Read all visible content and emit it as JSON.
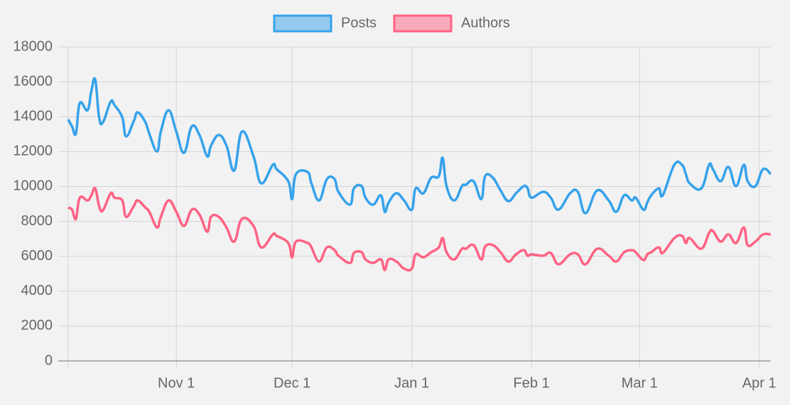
{
  "chart_data": {
    "type": "line",
    "x": [
      "Oct 4",
      "Oct 5",
      "Oct 6",
      "Oct 7",
      "Oct 9",
      "Oct 10",
      "Oct 11",
      "Oct 12",
      "Oct 13",
      "Oct 15",
      "Oct 16",
      "Oct 18",
      "Oct 19",
      "Oct 21",
      "Oct 22",
      "Oct 24",
      "Oct 25",
      "Oct 27",
      "Oct 28",
      "Oct 30",
      "Nov 1",
      "Nov 3",
      "Nov 5",
      "Nov 7",
      "Nov 9",
      "Nov 10",
      "Nov 12",
      "Nov 14",
      "Nov 16",
      "Nov 18",
      "Nov 21",
      "Nov 23",
      "Nov 26",
      "Nov 27",
      "Nov 30",
      "Dec 1",
      "Dec 2",
      "Dec 5",
      "Dec 6",
      "Dec 8",
      "Dec 10",
      "Dec 12",
      "Dec 13",
      "Dec 16",
      "Dec 17",
      "Dec 19",
      "Dec 20",
      "Dec 22",
      "Dec 24",
      "Dec 25",
      "Dec 26",
      "Dec 28",
      "Dec 30",
      "Jan 1",
      "Jan 2",
      "Jan 4",
      "Jan 6",
      "Jan 8",
      "Jan 9",
      "Jan 10",
      "Jan 12",
      "Jan 14",
      "Jan 15",
      "Jan 17",
      "Jan 19",
      "Jan 20",
      "Jan 22",
      "Jan 24",
      "Jan 26",
      "Jan 28",
      "Jan 30",
      "Jan 31",
      "Feb 1",
      "Feb 4",
      "Feb 6",
      "Feb 8",
      "Feb 11",
      "Feb 13",
      "Feb 15",
      "Feb 18",
      "Feb 21",
      "Feb 23",
      "Feb 25",
      "Feb 27",
      "Feb 28",
      "Mar 2",
      "Mar 3",
      "Mar 4",
      "Mar 6",
      "Mar 7",
      "Mar 10",
      "Mar 12",
      "Mar 13",
      "Mar 14",
      "Mar 17",
      "Mar 19",
      "Mar 20",
      "Mar 22",
      "Mar 24",
      "Mar 26",
      "Mar 28",
      "Mar 29",
      "Mar 31",
      "Apr 2",
      "Apr 4"
    ],
    "series": [
      {
        "name": "Posts",
        "color": "#36a2eb",
        "values": [
          13840,
          13440,
          13030,
          14780,
          14370,
          15470,
          16120,
          13970,
          13680,
          14860,
          14660,
          13970,
          12870,
          13760,
          14250,
          13680,
          13030,
          12010,
          13150,
          14370,
          13150,
          11930,
          13440,
          12950,
          11730,
          12340,
          12950,
          12340,
          10910,
          13150,
          11730,
          10180,
          11240,
          10990,
          10300,
          9280,
          10710,
          10830,
          10180,
          9200,
          10420,
          10420,
          9690,
          8960,
          9890,
          10020,
          9360,
          8960,
          9490,
          8550,
          9080,
          9610,
          9200,
          8670,
          9890,
          9610,
          10500,
          10590,
          11650,
          10020,
          9200,
          10020,
          10100,
          10300,
          9280,
          10590,
          10500,
          9770,
          9160,
          9610,
          10020,
          9890,
          9360,
          9690,
          9360,
          8670,
          9610,
          9690,
          8470,
          9770,
          9200,
          8550,
          9490,
          9200,
          9360,
          8670,
          9080,
          9490,
          9890,
          9490,
          11240,
          11240,
          10710,
          10180,
          9890,
          11240,
          10990,
          10300,
          11120,
          10020,
          11240,
          10300,
          10020,
          10990,
          10710
        ]
      },
      {
        "name": "Authors",
        "color": "#ff6384",
        "values": [
          8790,
          8670,
          8140,
          9360,
          9200,
          9490,
          9890,
          8880,
          8630,
          9610,
          9360,
          9200,
          8260,
          8880,
          9200,
          8790,
          8550,
          7650,
          8260,
          9200,
          8550,
          7740,
          8670,
          8390,
          7410,
          8260,
          8260,
          7650,
          6840,
          8140,
          7740,
          6510,
          7250,
          7170,
          6760,
          5940,
          6840,
          6760,
          6510,
          5700,
          6510,
          6350,
          6030,
          5620,
          6190,
          6230,
          5820,
          5620,
          5820,
          5210,
          5820,
          5700,
          5290,
          5290,
          6110,
          5940,
          6230,
          6510,
          7040,
          6230,
          5820,
          6430,
          6430,
          6640,
          5820,
          6560,
          6640,
          6230,
          5700,
          6110,
          6350,
          6030,
          6110,
          6030,
          6190,
          5540,
          6110,
          6110,
          5540,
          6430,
          6030,
          5700,
          6230,
          6350,
          6230,
          5780,
          6110,
          6230,
          6510,
          6190,
          7040,
          7170,
          6760,
          7040,
          6430,
          7330,
          7450,
          6840,
          7250,
          6760,
          7650,
          6640,
          6840,
          7250,
          7250
        ]
      }
    ],
    "xlim": [
      "Oct 4",
      "Apr 4"
    ],
    "xticks": [
      "Nov 1",
      "Dec 1",
      "Jan 1",
      "Feb 1",
      "Mar 1",
      "Apr 1"
    ],
    "ylim": [
      0,
      18000
    ],
    "yticks": [
      0,
      2000,
      4000,
      6000,
      8000,
      10000,
      12000,
      14000,
      16000,
      18000
    ],
    "grid": true,
    "legend": "top"
  }
}
